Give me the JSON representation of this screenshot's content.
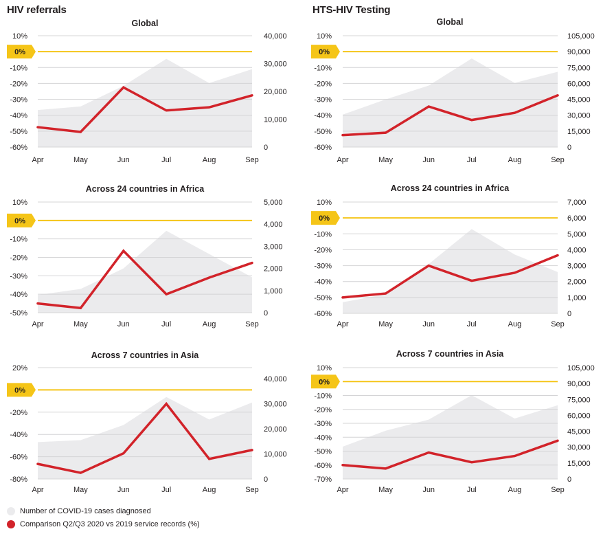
{
  "sections": {
    "left_title": "HIV referrals",
    "right_title": "HTS-HIV Testing"
  },
  "colors": {
    "area": "#ebebed",
    "line": "#d2232a",
    "zero_line": "#f5c518",
    "zero_badge": "#f5c518",
    "grid": "#d4d4d6",
    "text": "#231f20"
  },
  "legend": {
    "items": [
      {
        "label": "Number of COVID-19 cases diagnosed",
        "color": "#ebebed"
      },
      {
        "label": "Comparison Q2/Q3 2020 vs 2019 service records (%)",
        "color": "#d2232a"
      }
    ]
  },
  "chart_data": [
    {
      "type": "line",
      "group": "HIV referrals",
      "title": "Global",
      "categories": [
        "Apr",
        "May",
        "Jun",
        "Jul",
        "Aug",
        "Sep"
      ],
      "left_axis": {
        "ticks": [
          10,
          0,
          -10,
          -20,
          -30,
          -40,
          -50,
          -60
        ],
        "tick_labels": [
          "10%",
          "0%",
          "-10%",
          "-20%",
          "-30%",
          "-40%",
          "-50%",
          "-60%"
        ],
        "range": [
          -60,
          10
        ],
        "highlight": "0%"
      },
      "right_axis": {
        "ticks": [
          40000,
          30000,
          20000,
          10000,
          0
        ],
        "tick_labels": [
          "40,000",
          "30,000",
          "20,000",
          "10,000",
          "0"
        ],
        "range": [
          0,
          40000
        ]
      },
      "series": [
        {
          "name": "Number of COVID-19 cases diagnosed",
          "type": "area",
          "axis": "right",
          "values": [
            13300,
            14600,
            22000,
            31700,
            23000,
            28000
          ]
        },
        {
          "name": "Comparison Q2/Q3 2020 vs 2019 service records (%)",
          "type": "line",
          "axis": "left",
          "values": [
            -47.5,
            -50.5,
            -22.5,
            -37,
            -35,
            -27.5
          ]
        }
      ]
    },
    {
      "type": "line",
      "group": "HTS-HIV Testing",
      "title": "Global",
      "categories": [
        "Apr",
        "May",
        "Jun",
        "Jul",
        "Aug",
        "Sep"
      ],
      "left_axis": {
        "ticks": [
          10,
          0,
          -10,
          -20,
          -30,
          -40,
          -50,
          -60
        ],
        "tick_labels": [
          "10%",
          "0%",
          "-10%",
          "-20%",
          "-30%",
          "-40%",
          "-50%",
          "-60%"
        ],
        "range": [
          -60,
          10
        ],
        "highlight": "0%"
      },
      "right_axis": {
        "ticks": [
          105000,
          90000,
          75000,
          60000,
          45000,
          30000,
          15000,
          0
        ],
        "tick_labels": [
          "105,000",
          "90,000",
          "75,000",
          "60,000",
          "45,000",
          "30,000",
          "15,000",
          "0"
        ],
        "range": [
          0,
          105000
        ]
      },
      "series": [
        {
          "name": "Number of COVID-19 cases diagnosed",
          "type": "area",
          "axis": "right",
          "values": [
            30600,
            45000,
            58000,
            83500,
            60500,
            71000
          ]
        },
        {
          "name": "Comparison Q2/Q3 2020 vs 2019 service records (%)",
          "type": "line",
          "axis": "left",
          "values": [
            -52.5,
            -51,
            -34.5,
            -43,
            -38.5,
            -27.5
          ]
        }
      ]
    },
    {
      "type": "line",
      "group": "HIV referrals",
      "title": "Across 24 countries in Africa",
      "categories": [
        "Apr",
        "May",
        "Jun",
        "Jul",
        "Aug",
        "Sep"
      ],
      "left_axis": {
        "ticks": [
          10,
          0,
          -10,
          -20,
          -30,
          -40,
          -50
        ],
        "tick_labels": [
          "10%",
          "0%",
          "-10%",
          "-20%",
          "-30%",
          "-40%",
          "-50%"
        ],
        "range": [
          -50,
          10
        ],
        "highlight": "0%"
      },
      "right_axis": {
        "ticks": [
          5000,
          4000,
          3000,
          2000,
          1000,
          0
        ],
        "tick_labels": [
          "5,000",
          "4,000",
          "3,000",
          "2,000",
          "1,000",
          "0"
        ],
        "range": [
          0,
          5000
        ]
      },
      "series": [
        {
          "name": "Number of COVID-19 cases diagnosed",
          "type": "area",
          "axis": "right",
          "values": [
            800,
            1070,
            2000,
            3700,
            2650,
            1600
          ]
        },
        {
          "name": "Comparison Q2/Q3 2020 vs 2019 service records (%)",
          "type": "line",
          "axis": "left",
          "values": [
            -45,
            -47.5,
            -16.5,
            -40,
            -31,
            -23
          ]
        }
      ]
    },
    {
      "type": "line",
      "group": "HTS-HIV Testing",
      "title": "Across 24 countries in Africa",
      "categories": [
        "Apr",
        "May",
        "Jun",
        "Jul",
        "Aug",
        "Sep"
      ],
      "left_axis": {
        "ticks": [
          10,
          0,
          -10,
          -20,
          -30,
          -40,
          -50,
          -60
        ],
        "tick_labels": [
          "10%",
          "0%",
          "-10%",
          "-20%",
          "-30%",
          "-40%",
          "-50%",
          "-60%"
        ],
        "range": [
          -60,
          10
        ],
        "highlight": "0%"
      },
      "right_axis": {
        "ticks": [
          7000,
          6000,
          5000,
          4000,
          3000,
          2000,
          1000,
          0
        ],
        "tick_labels": [
          "7,000",
          "6,000",
          "5,000",
          "4,000",
          "3,000",
          "2,000",
          "1,000",
          "0"
        ],
        "range": [
          0,
          7000
        ]
      },
      "series": [
        {
          "name": "Number of COVID-19 cases diagnosed",
          "type": "area",
          "axis": "right",
          "values": [
            700,
            1200,
            3100,
            5300,
            3700,
            2600
          ]
        },
        {
          "name": "Comparison Q2/Q3 2020 vs 2019 service records (%)",
          "type": "line",
          "axis": "left",
          "values": [
            -50,
            -47.5,
            -30,
            -39.5,
            -34.5,
            -23.5
          ]
        }
      ]
    },
    {
      "type": "line",
      "group": "HIV referrals",
      "title": "Across 7 countries in Asia",
      "categories": [
        "Apr",
        "May",
        "Jun",
        "Jul",
        "Aug",
        "Sep"
      ],
      "left_axis": {
        "ticks": [
          20,
          0,
          -20,
          -40,
          -60,
          -80
        ],
        "tick_labels": [
          "20%",
          "0%",
          "-20%",
          "-40%",
          "-60%",
          "-80%"
        ],
        "range": [
          -80,
          20
        ],
        "highlight": "0%"
      },
      "right_axis": {
        "ticks": [
          40000,
          30000,
          20000,
          10000,
          0
        ],
        "tick_labels": [
          "40,000",
          "30,000",
          "20,000",
          "10,000",
          "0"
        ],
        "range": [
          0,
          44400
        ]
      },
      "series": [
        {
          "name": "Number of COVID-19 cases diagnosed",
          "type": "area",
          "axis": "right",
          "values": [
            14700,
            15500,
            21500,
            32700,
            23700,
            30500
          ]
        },
        {
          "name": "Comparison Q2/Q3 2020 vs 2019 service records (%)",
          "type": "line",
          "axis": "left",
          "values": [
            -66.5,
            -74.5,
            -57,
            -12.5,
            -62,
            -54
          ]
        }
      ]
    },
    {
      "type": "line",
      "group": "HTS-HIV Testing",
      "title": "Across 7 countries in Asia",
      "categories": [
        "Apr",
        "May",
        "Jun",
        "Jul",
        "Aug",
        "Sep"
      ],
      "left_axis": {
        "ticks": [
          10,
          0,
          -10,
          -20,
          -30,
          -40,
          -50,
          -60,
          -70
        ],
        "tick_labels": [
          "10%",
          "0%",
          "-10%",
          "-20%",
          "-30%",
          "-40%",
          "-50%",
          "-60%",
          "-70%"
        ],
        "range": [
          -70,
          10
        ],
        "highlight": "0%"
      },
      "right_axis": {
        "ticks": [
          105000,
          90000,
          75000,
          60000,
          45000,
          30000,
          15000,
          0
        ],
        "tick_labels": [
          "105,000",
          "90,000",
          "75,000",
          "60,000",
          "45,000",
          "30,000",
          "15,000",
          "0"
        ],
        "range": [
          0,
          105000
        ]
      },
      "series": [
        {
          "name": "Number of COVID-19 cases diagnosed",
          "type": "area",
          "axis": "right",
          "values": [
            30500,
            45500,
            56000,
            79000,
            57000,
            69500
          ]
        },
        {
          "name": "Comparison Q2/Q3 2020 vs 2019 service records (%)",
          "type": "line",
          "axis": "left",
          "values": [
            -60,
            -62.5,
            -51,
            -58,
            -53.5,
            -42.5
          ]
        }
      ]
    }
  ]
}
